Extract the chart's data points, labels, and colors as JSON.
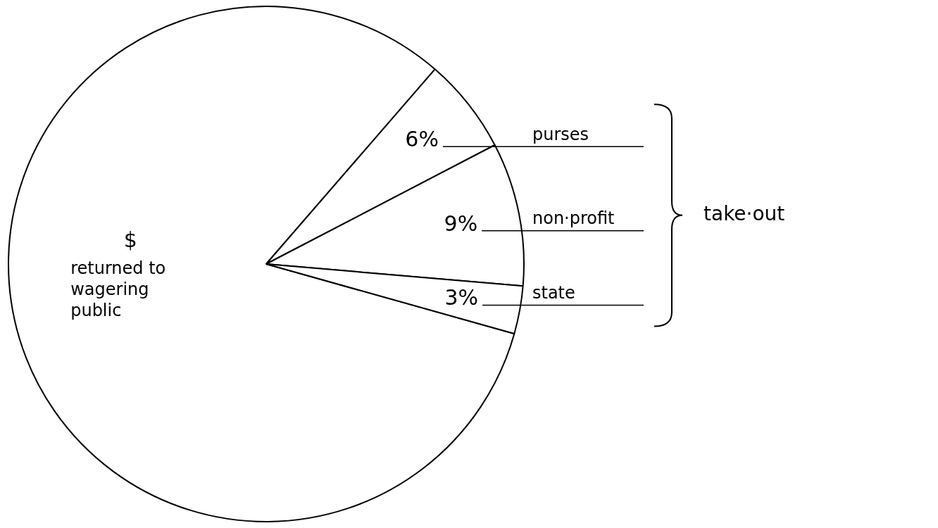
{
  "chart_data": {
    "type": "pie",
    "categories": [
      "returned to wagering public",
      "purses",
      "non·profit",
      "state"
    ],
    "values": [
      82,
      6,
      9,
      3
    ],
    "colors": [
      "#ffffff",
      "#ffffff",
      "#ffffff",
      "#ffffff"
    ],
    "value_labels": [
      "$",
      "6%",
      "9%",
      "3%"
    ],
    "annotations": [
      "take·out"
    ],
    "legend": false
  }
}
